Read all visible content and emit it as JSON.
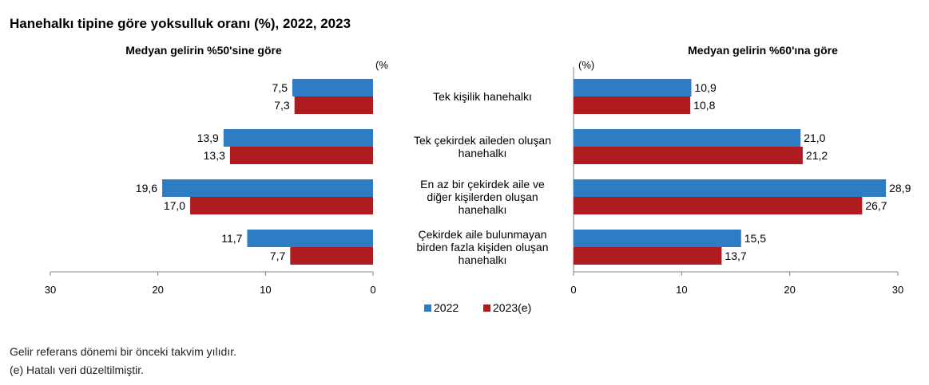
{
  "title": "Hanehalkı tipine göre yoksulluk oranı (%), 2022, 2023",
  "notes": [
    "Gelir referans dönemi bir önceki takvim yılıdır.",
    "(e) Hatalı veri düzeltilmiştir."
  ],
  "colors": {
    "2022": "#2E7CC4",
    "2023": "#AE1C1F"
  },
  "chart_data": [
    {
      "type": "bar",
      "orientation": "horizontal-reversed",
      "title": "Medyan gelirin %50'sine göre",
      "unit_label": "(%",
      "categories": [
        "Tek kişilik hanehalkı",
        "Tek çekirdek aileden oluşan hanehalkı",
        "En az bir çekirdek aile ve diğer kişilerden oluşan hanehalkı",
        "Çekirdek aile bulunmayan birden fazla kişiden oluşan hanehalkı"
      ],
      "series": [
        {
          "name": "2022",
          "values": [
            7.5,
            13.9,
            19.6,
            11.7
          ],
          "labels": [
            "7,5",
            "13,9",
            "19,6",
            "11,7"
          ]
        },
        {
          "name": "2023(e)",
          "values": [
            7.3,
            13.3,
            17.0,
            7.7
          ],
          "labels": [
            "7,3",
            "13,3",
            "17,0",
            "7,7"
          ]
        }
      ],
      "xlim": [
        0,
        30
      ],
      "ticks": [
        30,
        20,
        10,
        0
      ]
    },
    {
      "type": "bar",
      "orientation": "horizontal",
      "title": "Medyan gelirin %60'ına göre",
      "unit_label": "(%)",
      "categories": [
        [
          "Tek kişilik hanehalkı"
        ],
        [
          "Tek çekirdek aileden oluşan",
          "hanehalkı"
        ],
        [
          "En az bir çekirdek aile ve",
          "diğer kişilerden oluşan",
          "hanehalkı"
        ],
        [
          "Çekirdek aile bulunmayan",
          "birden fazla kişiden oluşan",
          "hanehalkı"
        ]
      ],
      "series": [
        {
          "name": "2022",
          "values": [
            10.9,
            21.0,
            28.9,
            15.5
          ],
          "labels": [
            "10,9",
            "21,0",
            "28,9",
            "15,5"
          ]
        },
        {
          "name": "2023(e)",
          "values": [
            10.8,
            21.2,
            26.7,
            13.7
          ],
          "labels": [
            "10,8",
            "21,2",
            "26,7",
            "13,7"
          ]
        }
      ],
      "xlim": [
        0,
        30
      ],
      "ticks": [
        0,
        10,
        20,
        30
      ]
    }
  ],
  "legend": {
    "placement": "bottom-center",
    "items": [
      "2022",
      "2023(e)"
    ]
  }
}
